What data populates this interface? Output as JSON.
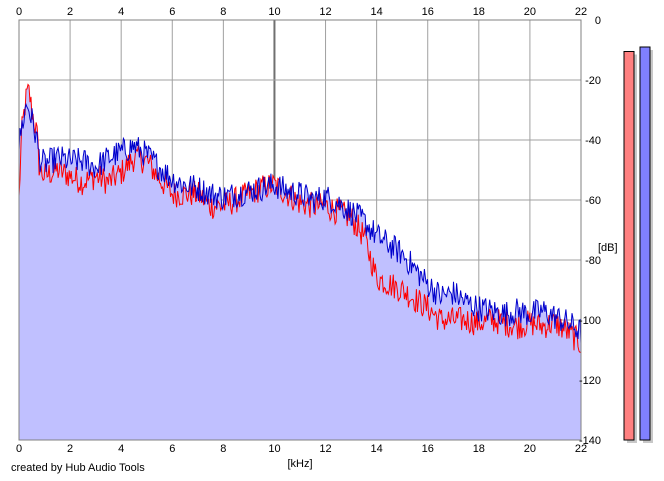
{
  "chart_data": {
    "type": "area",
    "xlabel": "[kHz]",
    "ylabel": "[dB]",
    "xlim": [
      0,
      22
    ],
    "ylim": [
      -140,
      0
    ],
    "x_ticks": [
      "0",
      "2",
      "4",
      "6",
      "8",
      "10",
      "12",
      "14",
      "16",
      "18",
      "20",
      "22"
    ],
    "y_ticks": [
      "0",
      "-20",
      "-40",
      "-60",
      "-80",
      "-100",
      "-120",
      "-140"
    ],
    "grid": true,
    "x_knots": [
      0,
      0.1,
      0.2,
      0.3,
      0.4,
      0.5,
      0.7,
      0.8,
      1.0,
      1.5,
      2.0,
      2.5,
      3.0,
      3.5,
      4.0,
      4.5,
      5.0,
      5.5,
      6.0,
      6.5,
      7.0,
      7.5,
      8.0,
      8.5,
      9.0,
      9.5,
      10.0,
      10.5,
      11.0,
      11.5,
      12.0,
      12.5,
      13.0,
      13.5,
      14.0,
      14.5,
      15.0,
      15.5,
      16.0,
      16.5,
      17.0,
      17.5,
      18.0,
      18.5,
      19.0,
      19.5,
      20.0,
      20.5,
      21.0,
      21.5,
      22.0
    ],
    "fill_color": "#c0c0ff",
    "series": [
      {
        "color": "#ff0000",
        "values": [
          -60,
          -38,
          -31,
          -25,
          -24,
          -30,
          -38,
          -50,
          -52,
          -50,
          -52,
          -54,
          -52,
          -54,
          -51,
          -46,
          -47,
          -53,
          -58,
          -58,
          -58,
          -62,
          -62,
          -60,
          -58,
          -56,
          -55,
          -58,
          -61,
          -62,
          -62,
          -64,
          -66,
          -72,
          -86,
          -88,
          -90,
          -93,
          -96,
          -100,
          -100,
          -100,
          -101,
          -100,
          -101,
          -102,
          -101,
          -102,
          -101,
          -104,
          -108
        ]
      },
      {
        "color": "#0000cc",
        "values": [
          -42,
          -36,
          -32,
          -28,
          -30,
          -33,
          -40,
          -46,
          -48,
          -46,
          -47,
          -47,
          -49,
          -46,
          -44,
          -42,
          -45,
          -49,
          -53,
          -55,
          -56,
          -58,
          -59,
          -58,
          -57,
          -56,
          -55,
          -57,
          -58,
          -60,
          -59,
          -61,
          -64,
          -67,
          -72,
          -75,
          -78,
          -83,
          -88,
          -92,
          -91,
          -94,
          -96,
          -97,
          -98,
          -97,
          -98,
          -97,
          -99,
          -101,
          -104
        ]
      }
    ],
    "meters": [
      {
        "color": "#ff8080",
        "level_db": -10.5
      },
      {
        "color": "#8080ff",
        "level_db": -9.0
      }
    ]
  },
  "footer": {
    "credit": "created by Hub Audio Tools"
  }
}
